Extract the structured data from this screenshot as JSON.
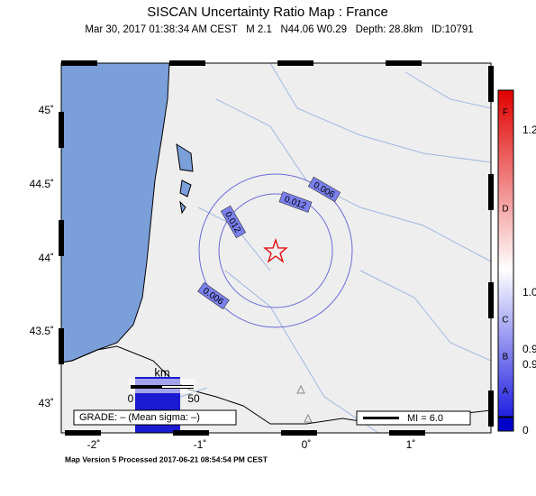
{
  "header": {
    "title": "SISCAN Uncertainty Ratio Map : France",
    "subtitle": "Mar 30, 2017 01:38:34 AM CEST   M 2.1   N44.06 W0.29   Depth: 28.8km   ID:10791"
  },
  "map": {
    "lat_labels": [
      "45˚",
      "44.5˚",
      "44˚",
      "43.5˚",
      "43˚"
    ],
    "lon_labels": [
      "-2˚",
      "-1˚",
      "0˚",
      "1˚"
    ],
    "contour_labels": [
      "0.006",
      "0.012",
      "0.012",
      "0.006"
    ],
    "scale_bar": {
      "unit": "km",
      "start": "0",
      "end": "50"
    },
    "grade": "GRADE: – (Mean sigma: –)",
    "mi": "MI = 6.0"
  },
  "colorbar": {
    "letters": [
      "F",
      "D",
      "C",
      "B",
      "A"
    ],
    "values": [
      "1.2",
      "1.0",
      "0.9",
      "0.9",
      "0"
    ]
  },
  "footer": "Map Version 5 Processed 2017-06-21 08:54:54 PM CEST"
}
